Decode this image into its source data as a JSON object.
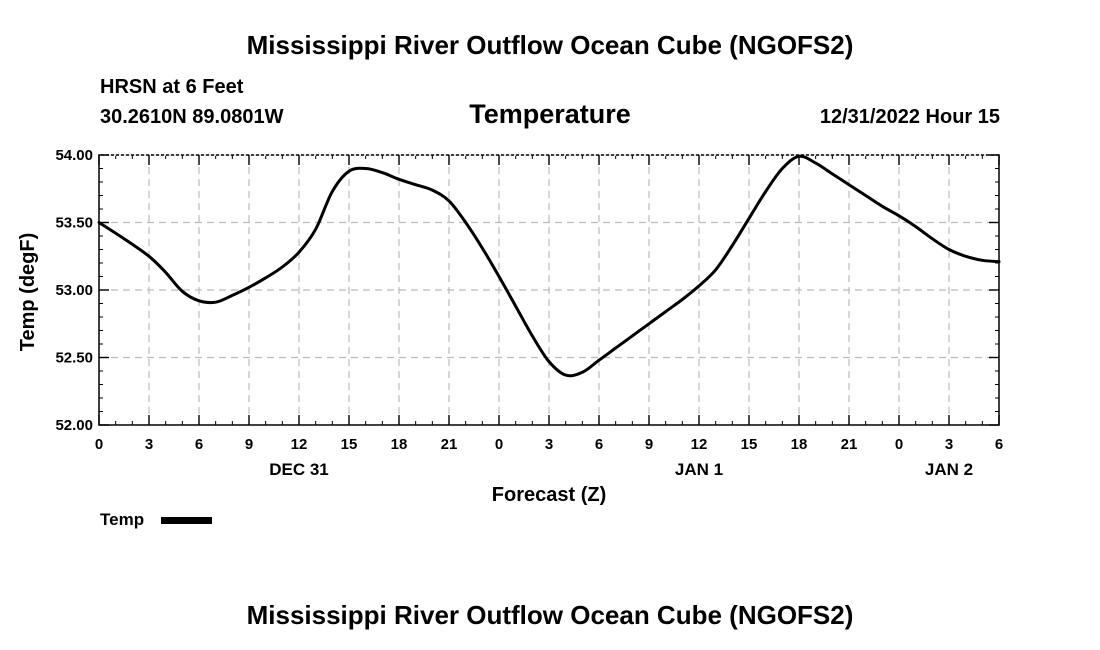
{
  "header": {
    "title": "Mississippi River Outflow Ocean Cube (NGOFS2)",
    "station": "HRSN at 6 Feet",
    "coords": "30.2610N  89.0801W",
    "panel_title": "Temperature",
    "run_time": "12/31/2022 Hour 15"
  },
  "footer": {
    "title": "Mississippi River Outflow Ocean Cube (NGOFS2)"
  },
  "chart_data": {
    "type": "line",
    "title": "Temperature",
    "xlabel": "Forecast (Z)",
    "ylabel": "Temp (degF)",
    "xlim": [
      0,
      54
    ],
    "ylim": [
      52.0,
      54.0
    ],
    "grid": true,
    "y_ticks": [
      52.0,
      52.5,
      53.0,
      53.5,
      54.0
    ],
    "y_tick_labels": [
      "52.00",
      "52.50",
      "53.00",
      "53.50",
      "54.00"
    ],
    "x_ticks": [
      0,
      3,
      6,
      9,
      12,
      15,
      18,
      21,
      24,
      27,
      30,
      33,
      36,
      39,
      42,
      45,
      48,
      51,
      54
    ],
    "x_tick_labels": [
      "0",
      "3",
      "6",
      "9",
      "12",
      "15",
      "18",
      "21",
      "0",
      "3",
      "6",
      "9",
      "12",
      "15",
      "18",
      "21",
      "0",
      "3",
      "6"
    ],
    "date_labels": [
      {
        "x": 12,
        "label": "DEC 31"
      },
      {
        "x": 36,
        "label": "JAN 1"
      },
      {
        "x": 51,
        "label": "JAN 2"
      }
    ],
    "legend": [
      {
        "name": "Temp",
        "position": "bottom-left"
      }
    ],
    "series": [
      {
        "name": "Temp",
        "x": [
          0,
          1.5,
          3,
          4,
          5,
          6,
          7,
          8,
          9,
          10,
          11,
          12,
          13,
          14,
          15,
          16,
          17,
          18,
          19,
          20,
          21,
          22,
          23,
          24,
          25,
          26,
          27,
          28,
          29,
          30,
          31,
          32,
          33,
          34,
          35,
          36,
          37,
          38,
          39,
          40,
          41,
          42,
          43,
          44,
          45,
          46,
          47,
          48,
          49,
          50,
          51,
          52,
          53,
          54
        ],
        "y": [
          53.5,
          53.38,
          53.25,
          53.13,
          52.99,
          52.92,
          52.91,
          52.96,
          53.02,
          53.09,
          53.17,
          53.28,
          53.45,
          53.73,
          53.88,
          53.9,
          53.87,
          53.82,
          53.78,
          53.74,
          53.66,
          53.5,
          53.31,
          53.1,
          52.88,
          52.66,
          52.47,
          52.37,
          52.39,
          52.48,
          52.57,
          52.66,
          52.75,
          52.84,
          52.93,
          53.03,
          53.15,
          53.33,
          53.53,
          53.73,
          53.9,
          53.99,
          53.94,
          53.86,
          53.78,
          53.7,
          53.62,
          53.55,
          53.47,
          53.38,
          53.3,
          53.25,
          53.22,
          53.21
        ]
      }
    ]
  }
}
